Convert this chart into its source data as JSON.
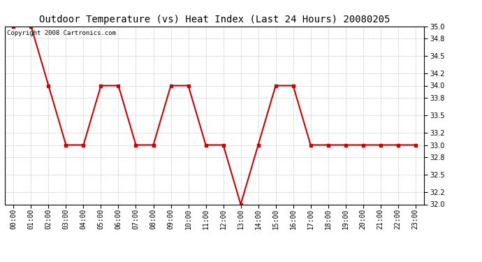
{
  "title": "Outdoor Temperature (vs) Heat Index (Last 24 Hours) 20080205",
  "copyright_text": "Copyright 2008 Cartronics.com",
  "x_labels": [
    "00:00",
    "01:00",
    "02:00",
    "03:00",
    "04:00",
    "05:00",
    "06:00",
    "07:00",
    "08:00",
    "09:00",
    "10:00",
    "11:00",
    "12:00",
    "13:00",
    "14:00",
    "15:00",
    "16:00",
    "17:00",
    "18:00",
    "19:00",
    "20:00",
    "21:00",
    "22:00",
    "23:00"
  ],
  "y_values": [
    35.0,
    35.0,
    34.0,
    33.0,
    33.0,
    34.0,
    34.0,
    33.0,
    33.0,
    34.0,
    34.0,
    33.0,
    33.0,
    32.0,
    33.0,
    34.0,
    34.0,
    33.0,
    33.0,
    33.0,
    33.0,
    33.0,
    33.0,
    33.0
  ],
  "line_color": "#cc0000",
  "marker": "s",
  "marker_size": 3,
  "marker_color": "#cc0000",
  "bg_color": "#ffffff",
  "plot_bg_color": "#ffffff",
  "grid_color": "#bbbbbb",
  "ylim": [
    32.0,
    35.0
  ],
  "yticks": [
    32.0,
    32.2,
    32.5,
    32.8,
    33.0,
    33.2,
    33.5,
    33.8,
    34.0,
    34.2,
    34.5,
    34.8,
    35.0
  ],
  "title_fontsize": 10,
  "tick_fontsize": 7,
  "copyright_fontsize": 6.5
}
